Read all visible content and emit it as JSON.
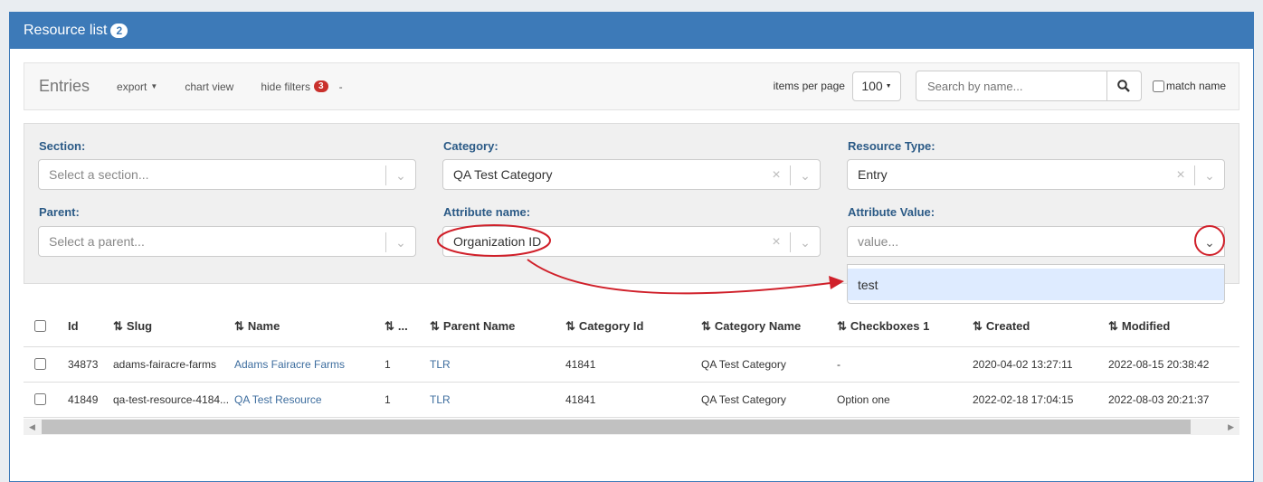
{
  "panel": {
    "title": "Resource list",
    "count": "2"
  },
  "toolbar": {
    "title": "Entries",
    "export": "export",
    "chart_view": "chart view",
    "hide_filters": "hide filters",
    "filter_count": "3",
    "dash": "-",
    "items_per_page_label": "items per page",
    "items_per_page": "100",
    "search_placeholder": "Search by name...",
    "match_name": "match name"
  },
  "filters": {
    "section": {
      "label": "Section:",
      "placeholder": "Select a section..."
    },
    "category": {
      "label": "Category:",
      "value": "QA Test Category"
    },
    "resource_type": {
      "label": "Resource Type:",
      "value": "Entry"
    },
    "parent": {
      "label": "Parent:",
      "placeholder": "Select a parent..."
    },
    "attribute_name": {
      "label": "Attribute name:",
      "value": "Organization ID"
    },
    "attribute_value": {
      "label": "Attribute Value:",
      "placeholder": "value...",
      "options": [
        "test"
      ]
    }
  },
  "table": {
    "columns": [
      "Id",
      "Slug",
      "Name",
      "...",
      "Parent Name",
      "Category Id",
      "Category Name",
      "Checkboxes 1",
      "Created",
      "Modified"
    ],
    "rows": [
      [
        "34873",
        "adams-fairacre-farms",
        "Adams Fairacre Farms",
        "1",
        "TLR",
        "41841",
        "QA Test Category",
        "-",
        "2020-04-02 13:27:11",
        "2022-08-15 20:38:42"
      ],
      [
        "41849",
        "qa-test-resource-4184...",
        "QA Test Resource",
        "1",
        "TLR",
        "41841",
        "QA Test Category",
        "Option one",
        "2022-02-18 17:04:15",
        "2022-08-03 20:21:37"
      ]
    ]
  },
  "colors": {
    "header": "#3d7ab8",
    "annotation": "#d0202a",
    "link": "#3d6d9e"
  }
}
